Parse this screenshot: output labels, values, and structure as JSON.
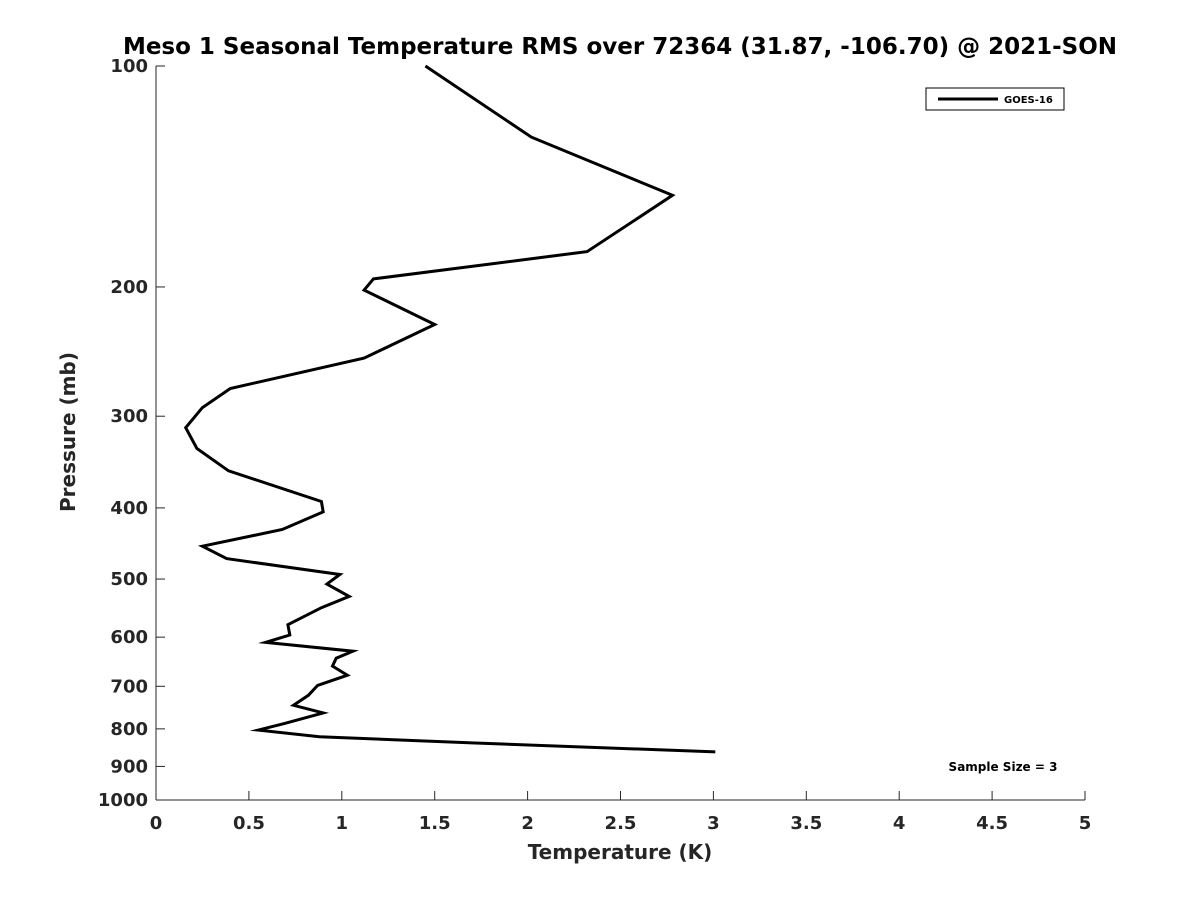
{
  "chart_data": {
    "type": "line",
    "title": "Meso 1 Seasonal Temperature RMS over 72364 (31.87, -106.70) @ 2021-SON",
    "xlabel": "Temperature (K)",
    "ylabel": "Pressure (mb)",
    "xlim": [
      0,
      5
    ],
    "ylim": [
      100,
      1000
    ],
    "y_scale": "log",
    "y_direction": "reversed",
    "x_ticks": [
      0,
      0.5,
      1,
      1.5,
      2,
      2.5,
      3,
      3.5,
      4,
      4.5,
      5
    ],
    "x_tick_labels": [
      "0",
      "0.5",
      "1",
      "1.5",
      "2",
      "2.5",
      "3",
      "3.5",
      "4",
      "4.5",
      "5"
    ],
    "y_ticks": [
      100,
      200,
      300,
      400,
      500,
      600,
      700,
      800,
      900,
      1000
    ],
    "y_tick_labels": [
      "100",
      "200",
      "300",
      "400",
      "500",
      "600",
      "700",
      "800",
      "900",
      "1000"
    ],
    "grid": false,
    "legend_position": "top-right",
    "series": [
      {
        "name": "GOES-16",
        "color": "#000000",
        "x": [
          1.45,
          2.02,
          2.78,
          2.32,
          1.17,
          1.12,
          1.5,
          1.12,
          0.4,
          0.25,
          0.16,
          0.22,
          0.39,
          0.89,
          0.9,
          0.68,
          0.25,
          0.38,
          0.99,
          0.92,
          1.04,
          0.89,
          0.71,
          0.72,
          0.59,
          1.06,
          0.97,
          0.95,
          1.03,
          0.87,
          0.82,
          0.74,
          0.9,
          0.69,
          0.55,
          0.88,
          1.7,
          3.01
        ],
        "y": [
          100,
          125,
          150,
          179,
          195,
          202,
          225,
          250,
          275,
          292,
          311,
          332,
          356,
          392,
          405,
          428,
          451,
          469,
          493,
          508,
          528,
          547,
          577,
          596,
          610,
          627,
          641,
          657,
          676,
          698,
          720,
          743,
          761,
          787,
          803,
          820,
          836,
          860
        ]
      }
    ],
    "annotations": [
      "Sample Size = 3"
    ]
  }
}
